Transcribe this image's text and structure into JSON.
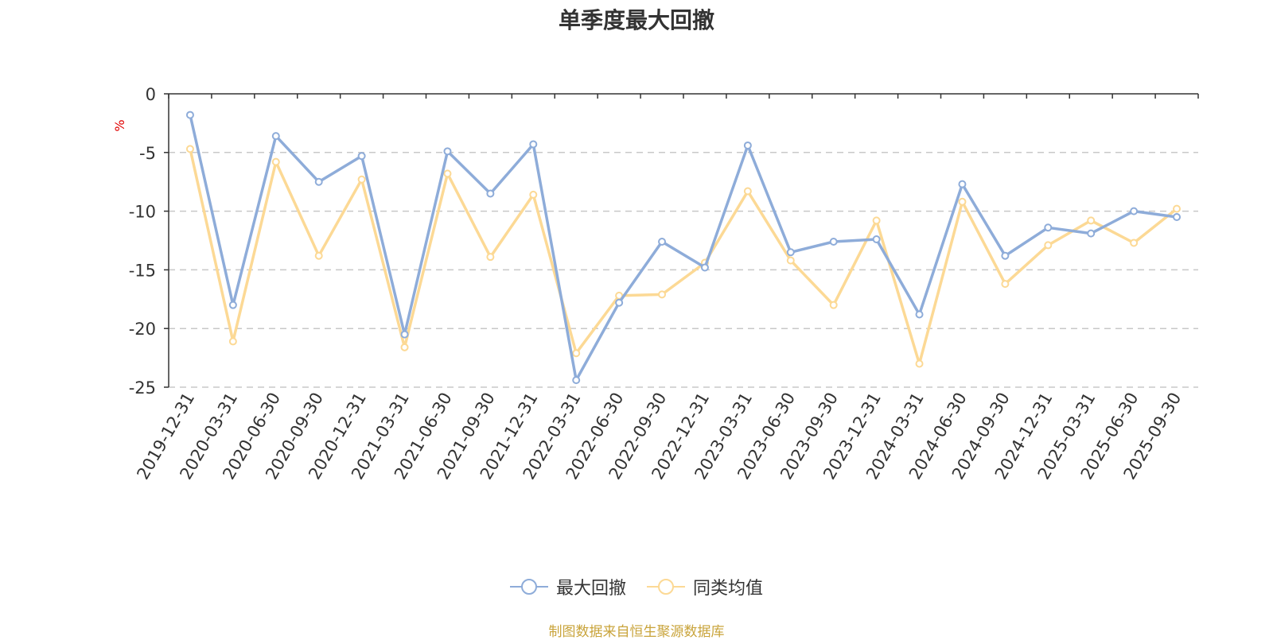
{
  "title": "单季度最大回撤",
  "source": "制图数据来自恒生聚源数据库",
  "colors": {
    "series_1": "#8eacd9",
    "series_2": "#fcd995",
    "unit": "#e00000",
    "source": "#c9a43b"
  },
  "chart_data": {
    "type": "line",
    "title": "单季度最大回撤",
    "ylabel": "%",
    "xlabel": "",
    "ylim": [
      -25,
      0
    ],
    "yticks": [
      0,
      -5,
      -10,
      -15,
      -20,
      -25
    ],
    "grid": true,
    "legend": "bottom-center",
    "categories": [
      "2019-12-31",
      "2020-03-31",
      "2020-06-30",
      "2020-09-30",
      "2020-12-31",
      "2021-03-31",
      "2021-06-30",
      "2021-09-30",
      "2021-12-31",
      "2022-03-31",
      "2022-06-30",
      "2022-09-30",
      "2022-12-31",
      "2023-03-31",
      "2023-06-30",
      "2023-09-30",
      "2023-12-31",
      "2024-03-31",
      "2024-06-30",
      "2024-09-30",
      "2024-12-31",
      "2025-03-31",
      "2025-06-30",
      "2025-09-30"
    ],
    "series": [
      {
        "name": "最大回撤",
        "values": [
          -1.8,
          -18.0,
          -3.6,
          -7.5,
          -5.3,
          -20.5,
          -4.9,
          -8.5,
          -4.3,
          -24.4,
          -17.8,
          -12.6,
          -14.8,
          -4.4,
          -13.5,
          -12.6,
          -12.4,
          -18.8,
          -7.7,
          -13.8,
          -11.4,
          -11.9,
          -10.0,
          -10.5
        ]
      },
      {
        "name": "同类均值",
        "values": [
          -4.7,
          -21.1,
          -5.8,
          -13.8,
          -7.3,
          -21.6,
          -6.8,
          -13.9,
          -8.6,
          -22.1,
          -17.2,
          -17.1,
          -14.4,
          -8.3,
          -14.2,
          -18.0,
          -10.8,
          -23.0,
          -9.2,
          -16.2,
          -12.9,
          -10.8,
          -12.7,
          -9.8
        ]
      }
    ]
  }
}
